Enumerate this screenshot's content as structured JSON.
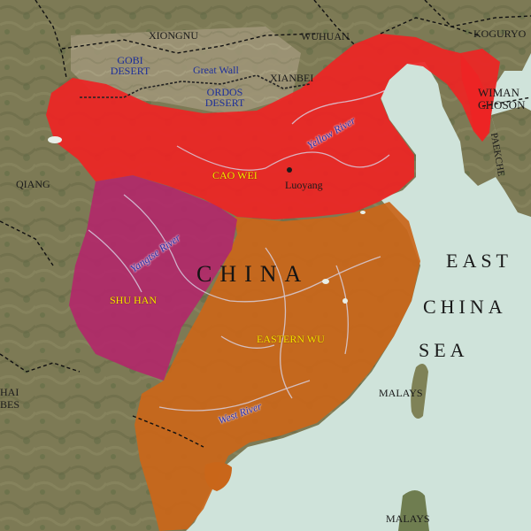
{
  "map": {
    "colors": {
      "cao_wei": "#ee2424",
      "shu_han": "#b3276a",
      "eastern_wu": "#c9661a",
      "sea": "#cfe3da",
      "land": "#7d7a55"
    },
    "regions": {
      "xiongnu": "XIONGNU",
      "wuhuan": "WUHUAN",
      "koguryo": "KOGURYO",
      "gobi_desert": "GOBI DESERT",
      "great_wall": "Great Wall",
      "ordos_desert": "ORDOS DESERT",
      "xianbei": "XIANBEI",
      "wiman_choson": "WIMAN CHOSON",
      "paekche": "PAEKCHE",
      "qiang": "QIANG",
      "hai_bes": "HAI BES",
      "malays_1": "MALAYS",
      "malays_2": "MALAYS"
    },
    "kingdoms": {
      "cao_wei": "CAO WEI",
      "shu_han": "SHU HAN",
      "eastern_wu": "EASTERN WU"
    },
    "cities": {
      "luoyang": "Luoyang"
    },
    "rivers": {
      "yellow": "Yellow River",
      "yangtse": "Yangtse River",
      "west": "West River"
    },
    "country": "CHINA",
    "sea_lines": [
      "EAST",
      "CHINA",
      "SEA"
    ]
  }
}
